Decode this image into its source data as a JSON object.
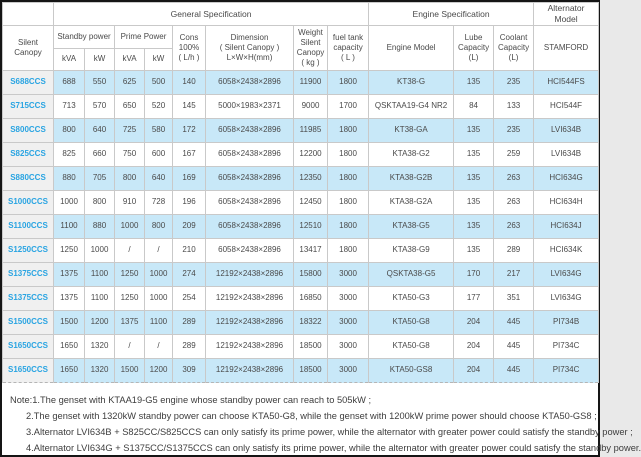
{
  "colors": {
    "accent_blue": "#29a4e2",
    "row_highlight": "#c8e8f8",
    "model_column_bg": "#f0f0f0",
    "border_gray": "#c9c9c9"
  },
  "table": {
    "groups": {
      "general": "General Specification",
      "engine": "Engine Specification",
      "alternator": "Alternator Model"
    },
    "headers": {
      "silent_canopy": "Silent Canopy",
      "standby_power": "Standby power",
      "prime_power": "Prime Power",
      "standby_kva": "kVA",
      "standby_kw": "kW",
      "prime_kva": "kVA",
      "prime_kw": "kW",
      "cons": "Cons\n100%\n( L/h )",
      "dimension": "Dimension\n( Silent Canopy )\nL×W×H(mm)",
      "weight": "Weight\nSilent\nCanopy\n( kg )",
      "fuel_tank": "fuel tank\ncapacity\n( L )",
      "engine_model": "Engine Model",
      "lube": "Lube\nCapacity\n(L)",
      "coolant": "Coolant\nCapacity\n(L)",
      "alternator": "STAMFORD"
    },
    "row_fields": [
      "model",
      "standby_kva",
      "standby_kw",
      "prime_kva",
      "prime_kw",
      "cons",
      "dimension",
      "weight",
      "fuel_tank",
      "engine_model",
      "lube",
      "coolant",
      "alternator"
    ],
    "rows": [
      {
        "model": "S688CCS",
        "standby_kva": "688",
        "standby_kw": "550",
        "prime_kva": "625",
        "prime_kw": "500",
        "cons": "140",
        "dimension": "6058×2438×2896",
        "weight": "11900",
        "fuel_tank": "1800",
        "engine_model": "KT38-G",
        "lube": "135",
        "coolant": "235",
        "alternator": "HCI544FS"
      },
      {
        "model": "S715CCS",
        "standby_kva": "713",
        "standby_kw": "570",
        "prime_kva": "650",
        "prime_kw": "520",
        "cons": "145",
        "dimension": "5000×1983×2371",
        "weight": "9000",
        "fuel_tank": "1700",
        "engine_model": "QSKTAA19-G4 NR2",
        "lube": "84",
        "coolant": "133",
        "alternator": "HCI544F"
      },
      {
        "model": "S800CCS",
        "standby_kva": "800",
        "standby_kw": "640",
        "prime_kva": "725",
        "prime_kw": "580",
        "cons": "172",
        "dimension": "6058×2438×2896",
        "weight": "11985",
        "fuel_tank": "1800",
        "engine_model": "KT38-GA",
        "lube": "135",
        "coolant": "235",
        "alternator": "LVI634B"
      },
      {
        "model": "S825CCS",
        "standby_kva": "825",
        "standby_kw": "660",
        "prime_kva": "750",
        "prime_kw": "600",
        "cons": "167",
        "dimension": "6058×2438×2896",
        "weight": "12200",
        "fuel_tank": "1800",
        "engine_model": "KTA38-G2",
        "lube": "135",
        "coolant": "259",
        "alternator": "LVI634B"
      },
      {
        "model": "S880CCS",
        "standby_kva": "880",
        "standby_kw": "705",
        "prime_kva": "800",
        "prime_kw": "640",
        "cons": "169",
        "dimension": "6058×2438×2896",
        "weight": "12350",
        "fuel_tank": "1800",
        "engine_model": "KTA38-G2B",
        "lube": "135",
        "coolant": "263",
        "alternator": "HCI634G"
      },
      {
        "model": "S1000CCS",
        "standby_kva": "1000",
        "standby_kw": "800",
        "prime_kva": "910",
        "prime_kw": "728",
        "cons": "196",
        "dimension": "6058×2438×2896",
        "weight": "12450",
        "fuel_tank": "1800",
        "engine_model": "KTA38-G2A",
        "lube": "135",
        "coolant": "263",
        "alternator": "HCI634H"
      },
      {
        "model": "S1100CCS",
        "standby_kva": "1100",
        "standby_kw": "880",
        "prime_kva": "1000",
        "prime_kw": "800",
        "cons": "209",
        "dimension": "6058×2438×2896",
        "weight": "12510",
        "fuel_tank": "1800",
        "engine_model": "KTA38-G5",
        "lube": "135",
        "coolant": "263",
        "alternator": "HCI634J"
      },
      {
        "model": "S1250CCS",
        "standby_kva": "1250",
        "standby_kw": "1000",
        "prime_kva": "/",
        "prime_kw": "/",
        "cons": "210",
        "dimension": "6058×2438×2896",
        "weight": "13417",
        "fuel_tank": "1800",
        "engine_model": "KTA38-G9",
        "lube": "135",
        "coolant": "289",
        "alternator": "HCI634K"
      },
      {
        "model": "S1375CCS",
        "standby_kva": "1375",
        "standby_kw": "1100",
        "prime_kva": "1250",
        "prime_kw": "1000",
        "cons": "274",
        "dimension": "12192×2438×2896",
        "weight": "15800",
        "fuel_tank": "3000",
        "engine_model": "QSKTA38-G5",
        "lube": "170",
        "coolant": "217",
        "alternator": "LVI634G"
      },
      {
        "model": "S1375CCS",
        "standby_kva": "1375",
        "standby_kw": "1100",
        "prime_kva": "1250",
        "prime_kw": "1000",
        "cons": "254",
        "dimension": "12192×2438×2896",
        "weight": "16850",
        "fuel_tank": "3000",
        "engine_model": "KTA50-G3",
        "lube": "177",
        "coolant": "351",
        "alternator": "LVI634G"
      },
      {
        "model": "S1500CCS",
        "standby_kva": "1500",
        "standby_kw": "1200",
        "prime_kva": "1375",
        "prime_kw": "1100",
        "cons": "289",
        "dimension": "12192×2438×2896",
        "weight": "18322",
        "fuel_tank": "3000",
        "engine_model": "KTA50-G8",
        "lube": "204",
        "coolant": "445",
        "alternator": "PI734B"
      },
      {
        "model": "S1650CCS",
        "standby_kva": "1650",
        "standby_kw": "1320",
        "prime_kva": "/",
        "prime_kw": "/",
        "cons": "289",
        "dimension": "12192×2438×2896",
        "weight": "18500",
        "fuel_tank": "3000",
        "engine_model": "KTA50-G8",
        "lube": "204",
        "coolant": "445",
        "alternator": "PI734C"
      },
      {
        "model": "S1650CCS",
        "standby_kva": "1650",
        "standby_kw": "1320",
        "prime_kva": "1500",
        "prime_kw": "1200",
        "cons": "309",
        "dimension": "12192×2438×2896",
        "weight": "18500",
        "fuel_tank": "3000",
        "engine_model": "KTA50-GS8",
        "lube": "204",
        "coolant": "445",
        "alternator": "PI734C"
      }
    ]
  },
  "notes": {
    "lines": [
      "Note:1.The genset with KTAA19-G5 engine whose standby power can reach to 505kW ;",
      "2.The genset with 1320kW standby power can choose KTA50-G8, while the genset with 1200kW prime power should choose KTA50-GS8 ;",
      "3.Alternator LVI634B + S825CC/S825CCS can only satisfy its prime power, while the alternator with greater power could satisfy the standby power ;",
      "4.Alternator LVI634G + S1375CC/S1375CCS can only satisfy its prime power, while the alternator with greater power could satisfy the standby power."
    ]
  }
}
